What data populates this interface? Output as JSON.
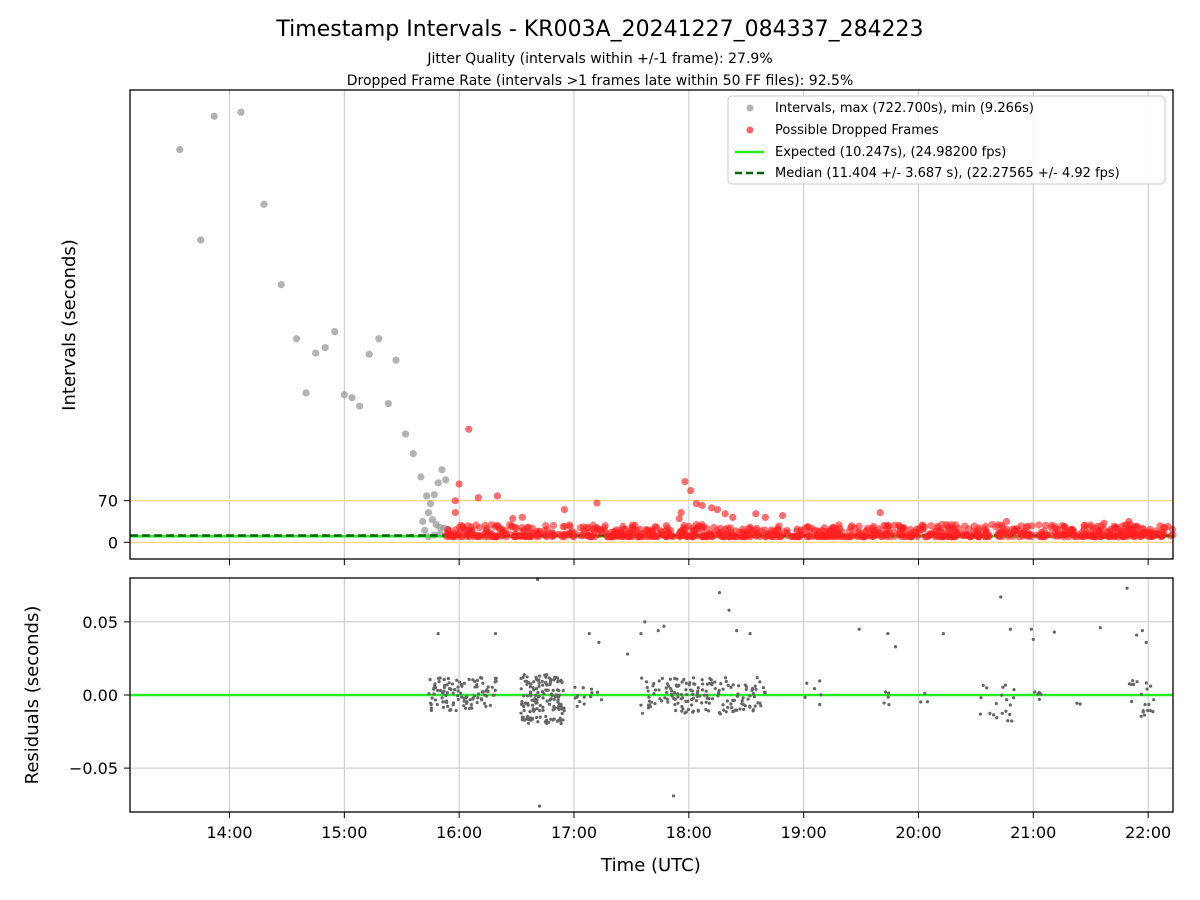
{
  "figure": {
    "title": "Timestamp Intervals - KR003A_20241227_084337_284223",
    "subtitle_1": "Jitter Quality (intervals within +/-1 frame): 27.9%",
    "subtitle_2": "Dropped Frame Rate (intervals >1 frames late within 50 FF files): 92.5%"
  },
  "colors": {
    "intervals": "#999999",
    "dropped": "#ff2020",
    "expected": "#22ee22",
    "median": "#006400",
    "bounds": "#f5d78e",
    "residuals": "#666666",
    "grid": "#c8c8c8"
  },
  "chart_data": [
    {
      "type": "scatter",
      "ylabel": "Intervals (seconds)",
      "y_ticks": [
        0,
        70
      ],
      "y_tick_labels": [
        "0",
        "70"
      ],
      "ylim": [
        -28,
        760
      ],
      "xlim": [
        "13:08",
        "22:13"
      ],
      "grid": "vertical",
      "legend_position": "top-right",
      "horizontal_lines": [
        {
          "kind": "bound",
          "y": 70
        },
        {
          "kind": "bound",
          "y": 0
        }
      ],
      "series": [
        {
          "name": "Intervals, max (722.700s), min (9.266s)",
          "marker": "gray-circle",
          "points": [
            [
              "13:34",
              660
            ],
            [
              "13:45",
              508
            ],
            [
              "13:52",
              716
            ],
            [
              "14:06",
              722.7
            ],
            [
              "14:18",
              568
            ],
            [
              "14:27",
              433
            ],
            [
              "14:35",
              342
            ],
            [
              "14:40",
              251
            ],
            [
              "14:45",
              318
            ],
            [
              "14:50",
              327
            ],
            [
              "14:55",
              354
            ],
            [
              "15:00",
              248
            ],
            [
              "15:04",
              243
            ],
            [
              "15:08",
              229
            ],
            [
              "15:13",
              316
            ],
            [
              "15:18",
              342
            ],
            [
              "15:23",
              233
            ],
            [
              "15:27",
              306
            ],
            [
              "15:32",
              182
            ],
            [
              "15:36",
              149
            ],
            [
              "15:40",
              110
            ],
            [
              "15:43",
              78
            ],
            [
              "15:45",
              65
            ],
            [
              "15:47",
              80
            ],
            [
              "15:49",
              100
            ],
            [
              "15:51",
              122
            ],
            [
              "15:53",
              105
            ],
            [
              "15:41",
              35
            ],
            [
              "15:42",
              20
            ],
            [
              "15:44",
              50
            ],
            [
              "15:46",
              38
            ],
            [
              "15:48",
              30
            ],
            [
              "15:50",
              25
            ],
            [
              "15:52",
              24
            ],
            [
              "15:54",
              22
            ],
            [
              "15:44",
              9.3
            ],
            [
              "15:47",
              12
            ],
            [
              "15:50",
              14
            ],
            [
              "15:53",
              11
            ]
          ]
        },
        {
          "name": "Possible Dropped Frames",
          "marker": "red-circle",
          "points": [
            [
              "16:05",
              190
            ],
            [
              "16:00",
              98
            ],
            [
              "15:58",
              70
            ],
            [
              "15:58",
              50
            ],
            [
              "16:10",
              75
            ],
            [
              "16:20",
              78
            ],
            [
              "16:28",
              40
            ],
            [
              "16:33",
              42
            ],
            [
              "16:55",
              55
            ],
            [
              "17:12",
              66
            ],
            [
              "17:58",
              102
            ],
            [
              "18:01",
              87
            ],
            [
              "18:04",
              65
            ],
            [
              "18:07",
              62
            ],
            [
              "17:56",
              50
            ],
            [
              "17:55",
              40
            ],
            [
              "18:12",
              58
            ],
            [
              "18:15",
              55
            ],
            [
              "18:19",
              48
            ],
            [
              "18:23",
              42
            ],
            [
              "18:35",
              48
            ],
            [
              "18:40",
              42
            ],
            [
              "18:49",
              45
            ],
            [
              "19:40",
              50
            ],
            [
              "20:46",
              35
            ],
            [
              "21:37",
              32
            ],
            [
              "21:50",
              35
            ]
          ],
          "dense_band": {
            "from": "15:53",
            "to": "22:13",
            "y_min": 9.3,
            "y_max": 30,
            "count": 900
          }
        },
        {
          "name": "Expected (10.247s), (24.98200 fps)",
          "line": "solid",
          "y": 10.247
        },
        {
          "name": "Median (11.404 +/- 3.687 s), (22.27565 +/- 4.92 fps)",
          "line": "dashed",
          "y": 11.404
        }
      ]
    },
    {
      "type": "scatter",
      "xlabel": "Time (UTC)",
      "ylabel": "Residuals (seconds)",
      "ylim": [
        -0.08,
        0.08
      ],
      "y_ticks": [
        -0.05,
        0.0,
        0.05
      ],
      "y_tick_labels": [
        "−0.05",
        "0.00",
        "0.05"
      ],
      "x_ticks": [
        "14:00",
        "15:00",
        "16:00",
        "17:00",
        "18:00",
        "19:00",
        "20:00",
        "21:00",
        "22:00"
      ],
      "grid": "both",
      "horizontal_lines": [
        {
          "kind": "zero",
          "y": 0
        }
      ],
      "series": [
        {
          "name": "",
          "marker": "gray-dot",
          "outliers": [
            [
              "15:49",
              0.042
            ],
            [
              "16:19",
              0.042
            ],
            [
              "16:41",
              0.079
            ],
            [
              "16:42",
              -0.076
            ],
            [
              "17:08",
              0.042
            ],
            [
              "17:13",
              0.036
            ],
            [
              "17:28",
              0.028
            ],
            [
              "17:35",
              0.042
            ],
            [
              "17:37",
              0.05
            ],
            [
              "17:44",
              0.044
            ],
            [
              "17:47",
              0.047
            ],
            [
              "17:52",
              -0.069
            ],
            [
              "18:16",
              0.07
            ],
            [
              "18:21",
              0.058
            ],
            [
              "18:25",
              0.044
            ],
            [
              "18:32",
              0.042
            ],
            [
              "19:29",
              0.045
            ],
            [
              "19:44",
              0.042
            ],
            [
              "19:48",
              0.033
            ],
            [
              "20:13",
              0.042
            ],
            [
              "20:43",
              0.067
            ],
            [
              "20:48",
              0.045
            ],
            [
              "20:59",
              0.045
            ],
            [
              "21:00",
              0.038
            ],
            [
              "21:11",
              0.043
            ],
            [
              "21:35",
              0.046
            ],
            [
              "21:49",
              0.073
            ],
            [
              "21:54",
              0.041
            ],
            [
              "21:57",
              0.044
            ],
            [
              "21:59",
              0.036
            ]
          ],
          "clusters": [
            {
              "from": "15:44",
              "to": "16:20",
              "y_min": -0.011,
              "y_max": 0.012,
              "count": 110
            },
            {
              "from": "16:32",
              "to": "16:55",
              "y_min": -0.02,
              "y_max": 0.014,
              "count": 150
            },
            {
              "from": "17:00",
              "to": "17:15",
              "y_min": -0.008,
              "y_max": 0.007,
              "count": 14
            },
            {
              "from": "17:35",
              "to": "18:40",
              "y_min": -0.013,
              "y_max": 0.012,
              "count": 170
            },
            {
              "from": "19:00",
              "to": "19:10",
              "y_min": -0.009,
              "y_max": 0.01,
              "count": 6
            },
            {
              "from": "19:40",
              "to": "19:45",
              "y_min": -0.008,
              "y_max": 0.004,
              "count": 5
            },
            {
              "from": "20:00",
              "to": "20:05",
              "y_min": -0.005,
              "y_max": 0.004,
              "count": 3
            },
            {
              "from": "20:30",
              "to": "20:50",
              "y_min": -0.018,
              "y_max": 0.007,
              "count": 20
            },
            {
              "from": "21:00",
              "to": "21:05",
              "y_min": -0.003,
              "y_max": 0.004,
              "count": 5
            },
            {
              "from": "21:20",
              "to": "21:25",
              "y_min": -0.007,
              "y_max": -0.003,
              "count": 2
            },
            {
              "from": "21:50",
              "to": "22:03",
              "y_min": -0.015,
              "y_max": 0.01,
              "count": 20
            }
          ]
        },
        {
          "name": "",
          "line": "solid",
          "y": 0
        }
      ]
    }
  ]
}
